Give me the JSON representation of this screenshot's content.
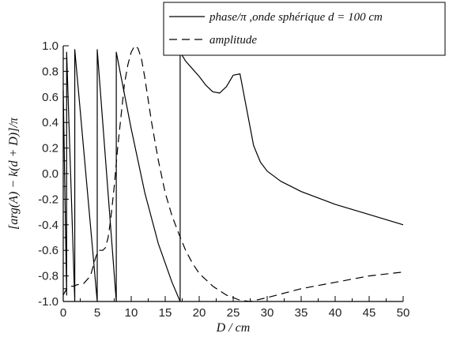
{
  "chart_data": {
    "type": "line",
    "xlabel": "D / cm",
    "ylabel": "[arg(A) − k(d + D)]/π",
    "xlim": [
      0,
      50
    ],
    "ylim": [
      -1.0,
      1.0
    ],
    "xticks": [
      "0",
      "5",
      "10",
      "15",
      "20",
      "25",
      "30",
      "35",
      "40",
      "45",
      "50"
    ],
    "yticks": [
      "1.0",
      "0.8",
      "0.6",
      "0.4",
      "0.2",
      "0.0",
      "-0.2",
      "-0.4",
      "-0.6",
      "-0.8",
      "-1.0"
    ],
    "grid": false,
    "legend_position": "top-right",
    "series": [
      {
        "name": "phase/π ,onde sphérique d = 100 cm",
        "style": "solid",
        "color": "#000000",
        "x": [
          0,
          0.5,
          0.5,
          1.7,
          1.7,
          5.0,
          5.0,
          7.8,
          7.8,
          10.0,
          12.0,
          14.0,
          16.0,
          17.2,
          17.2,
          18.0,
          19.0,
          20.0,
          21.0,
          22.0,
          23.0,
          24.0,
          25.0,
          26.0,
          27.0,
          28.0,
          29.0,
          30.0,
          32.0,
          35.0,
          40.0,
          45.0,
          50.0
        ],
        "y": [
          0.65,
          -0.95,
          0.95,
          -1.0,
          0.97,
          -1.0,
          0.97,
          -1.0,
          0.95,
          0.35,
          -0.15,
          -0.55,
          -0.85,
          -1.0,
          0.95,
          0.88,
          0.82,
          0.76,
          0.69,
          0.64,
          0.63,
          0.68,
          0.77,
          0.78,
          0.5,
          0.22,
          0.09,
          0.02,
          -0.06,
          -0.14,
          -0.24,
          -0.32,
          -0.4
        ]
      },
      {
        "name": "amplitude",
        "style": "dashed",
        "color": "#000000",
        "x": [
          0,
          0.5,
          1.0,
          1.5,
          2.0,
          3.0,
          4.0,
          4.8,
          5.2,
          5.8,
          6.2,
          6.6,
          7.0,
          7.5,
          8.0,
          8.5,
          9.0,
          9.5,
          10.0,
          10.5,
          11.0,
          11.5,
          12.0,
          13.0,
          14.0,
          15.0,
          16.0,
          17.0,
          18.0,
          19.0,
          20.0,
          22.0,
          24.0,
          26.0,
          27.5,
          30.0,
          35.0,
          40.0,
          45.0,
          50.0
        ],
        "y": [
          -0.95,
          -0.9,
          -0.88,
          -0.88,
          -0.87,
          -0.86,
          -0.8,
          -0.65,
          -0.6,
          -0.6,
          -0.58,
          -0.5,
          -0.35,
          -0.1,
          0.2,
          0.45,
          0.7,
          0.85,
          0.95,
          1.0,
          0.98,
          0.9,
          0.75,
          0.4,
          0.1,
          -0.15,
          -0.33,
          -0.47,
          -0.6,
          -0.7,
          -0.78,
          -0.88,
          -0.95,
          -0.99,
          -1.0,
          -0.97,
          -0.9,
          -0.85,
          -0.8,
          -0.77
        ]
      }
    ]
  },
  "legend": {
    "items": [
      {
        "label": "phase/π ,onde sphérique d = 100 cm",
        "style": "solid"
      },
      {
        "label": "amplitude",
        "style": "dashed"
      }
    ]
  }
}
